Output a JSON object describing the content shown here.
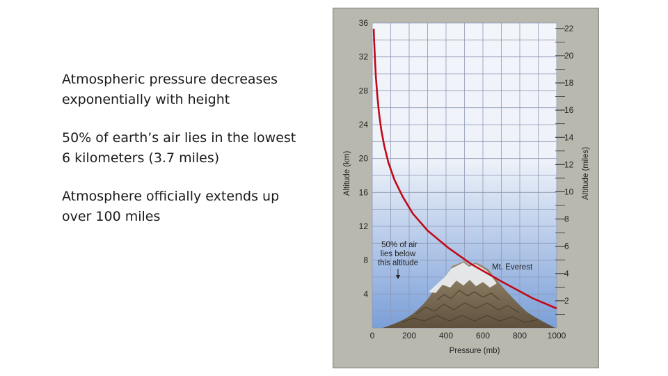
{
  "slide": {
    "bullets": [
      "Atmospheric pressure decreases exponentially with height",
      "50% of earth’s air lies in the lowest 6 kilometers (3.7 miles)",
      "Atmosphere officially extends up over 100 miles"
    ]
  },
  "chart_data": {
    "type": "line",
    "title": "",
    "xlabel": "Pressure (mb)",
    "ylabel": "Altitude (km)",
    "ylabel_right": "Altitude (miles)",
    "xlim": [
      0,
      1000
    ],
    "ylim": [
      0,
      36
    ],
    "ylim_right": [
      0,
      22.4
    ],
    "x_ticks": [
      0,
      200,
      400,
      600,
      800,
      1000
    ],
    "y_ticks": [
      4,
      8,
      12,
      16,
      20,
      24,
      28,
      32,
      36
    ],
    "y_ticks_right": [
      2,
      4,
      6,
      8,
      10,
      12,
      14,
      16,
      18,
      20,
      22
    ],
    "grid": true,
    "series": [
      {
        "x": [
          8,
          10,
          12,
          15,
          20,
          27,
          36,
          48,
          65,
          88,
          120,
          165,
          220,
          300,
          410,
          540,
          700,
          870,
          1000
        ],
        "y": [
          35.3,
          34,
          33,
          31.5,
          29.5,
          27.5,
          25.5,
          23.5,
          21.5,
          19.5,
          17.5,
          15.5,
          13.5,
          11.5,
          9.5,
          7.5,
          5.5,
          3.5,
          2.3
        ]
      }
    ],
    "annotations": {
      "half_air_label": [
        "50% of air",
        "lies below",
        "this altitude"
      ],
      "mountain_label": "Mt. Everest"
    },
    "colors": {
      "curve": "#c00a16",
      "frame": "#b9b8ae",
      "frame_dark": "#8d8c83",
      "panel_top": "#f2f5fa",
      "panel_bottom": "#7a9fd8",
      "grid": "#8e97b4",
      "tick_text": "#222222"
    }
  }
}
